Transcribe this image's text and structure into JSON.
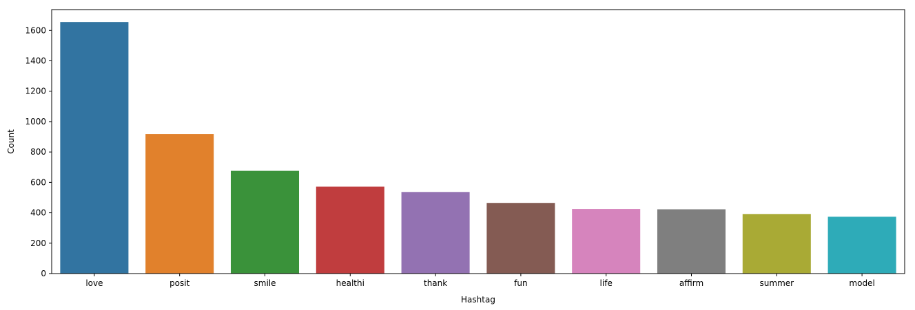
{
  "chart_data": {
    "type": "bar",
    "categories": [
      "love",
      "posit",
      "smile",
      "healthi",
      "thank",
      "fun",
      "life",
      "affirm",
      "summer",
      "model"
    ],
    "values": [
      1655,
      918,
      676,
      572,
      537,
      465,
      425,
      423,
      392,
      374
    ],
    "xlabel": "Hashtag",
    "ylabel": "Count",
    "ylim": [
      0,
      1737
    ],
    "yticks": [
      0,
      200,
      400,
      600,
      800,
      1000,
      1200,
      1400,
      1600
    ],
    "grid": false,
    "colors": [
      "#3274a1",
      "#e1812c",
      "#3a923a",
      "#c03d3e",
      "#9372b2",
      "#845b53",
      "#d684bd",
      "#7f7f7f",
      "#a9aa35",
      "#2eabb8"
    ]
  }
}
